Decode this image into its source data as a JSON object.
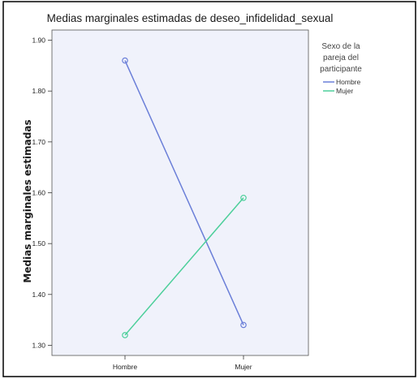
{
  "chart_data": {
    "type": "line",
    "title": "Medias marginales estimadas de deseo_infidelidad_sexual",
    "xlabel": "",
    "ylabel": "Medias marginales estimadas",
    "categories": [
      "Hombre",
      "Mujer"
    ],
    "ylim": [
      1.28,
      1.92
    ],
    "yticks": [
      "1.30",
      "1.40",
      "1.50",
      "1.60",
      "1.70",
      "1.80",
      "1.90"
    ],
    "ytick_values": [
      1.3,
      1.4,
      1.5,
      1.6,
      1.7,
      1.8,
      1.9
    ],
    "grid": false,
    "legend": {
      "title_lines": [
        "Sexo de la",
        "pareja del",
        "participante"
      ],
      "placement": "right"
    },
    "series": [
      {
        "name": "Hombre",
        "values": [
          1.86,
          1.34
        ],
        "color": "#6b7fd8"
      },
      {
        "name": "Mujer",
        "values": [
          1.32,
          1.59
        ],
        "color": "#4ccf9a"
      }
    ],
    "plot_background": "#f0f2fb"
  }
}
